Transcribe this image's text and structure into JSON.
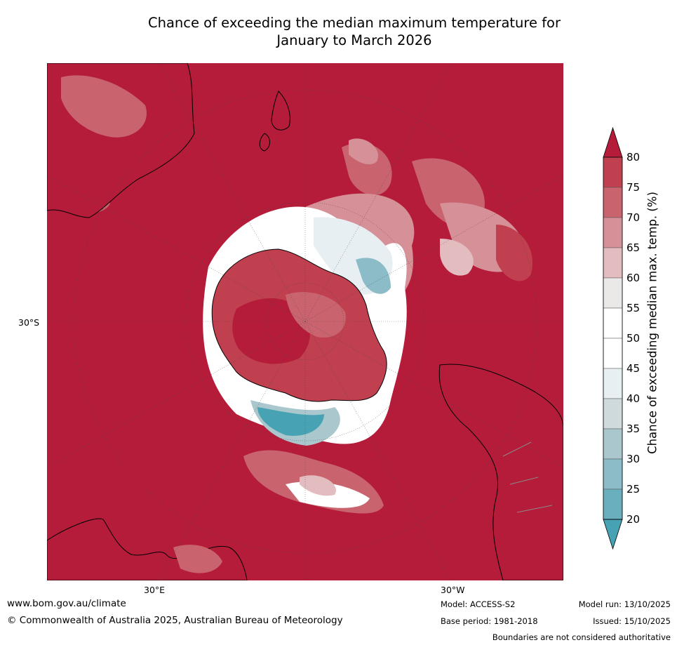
{
  "title": {
    "line1": "Chance of exceeding the median maximum temperature for",
    "line2": "January to March 2026"
  },
  "map": {
    "projection": "south-polar-stereographic",
    "lat_label": "30°S",
    "lon_labels": [
      "30°E",
      "30°W"
    ],
    "background_color": "#b41c3a",
    "land_outline_color": "#000000",
    "border_color": "#8a8a8a"
  },
  "colorbar": {
    "label": "Chance of exceeding median max. temp. (%)",
    "ticks": [
      "80",
      "75",
      "70",
      "65",
      "60",
      "55",
      "50",
      "45",
      "40",
      "35",
      "30",
      "25",
      "20"
    ],
    "extend": "both",
    "colors": {
      "above_80": "#b41c3a",
      "75_80": "#c0404f",
      "70_75": "#c9646e",
      "65_70": "#d69098",
      "60_65": "#e3bcc0",
      "55_60": "#ebe8e8",
      "50_55": "#ffffff",
      "45_50": "#ffffff",
      "40_45": "#e8eff2",
      "35_40": "#cfdadd",
      "30_35": "#abc7ce",
      "25_30": "#8bbcc8",
      "20_25": "#6aafbd",
      "below_20": "#47a3b3"
    }
  },
  "footer": {
    "url": "www.bom.gov.au/climate",
    "copyright": "© Commonwealth of Australia 2025, Australian Bureau of Meteorology",
    "model": "Model: ACCESS-S2",
    "base_period": "Base period: 1981-2018",
    "model_run": "Model run: 13/10/2025",
    "issued": "Issued: 15/10/2025",
    "disclaimer": "Boundaries are not considered authoritative"
  }
}
